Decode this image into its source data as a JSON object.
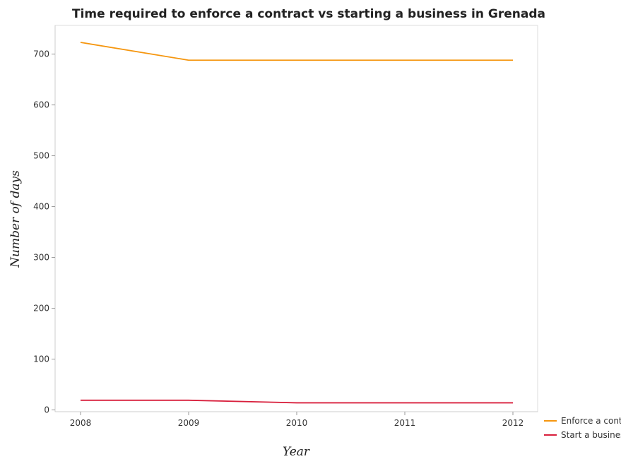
{
  "chart_data": {
    "type": "line",
    "title": "Time required to enforce a contract vs starting a business in Grenada",
    "xlabel": "Year",
    "ylabel": "Number of days",
    "categories": [
      "2008",
      "2009",
      "2010",
      "2011",
      "2012"
    ],
    "ylim": [
      0,
      760
    ],
    "yticks": [
      0,
      100,
      200,
      300,
      400,
      500,
      600,
      700
    ],
    "grid": false,
    "legend_position": "bottom-right",
    "series": [
      {
        "name": "Enforce a contract",
        "color": "#f5960f",
        "values": [
          723,
          688,
          688,
          688,
          688
        ]
      },
      {
        "name": "Start a business",
        "color": "#d81f3c",
        "values": [
          19,
          19,
          14,
          14,
          14
        ]
      }
    ]
  }
}
